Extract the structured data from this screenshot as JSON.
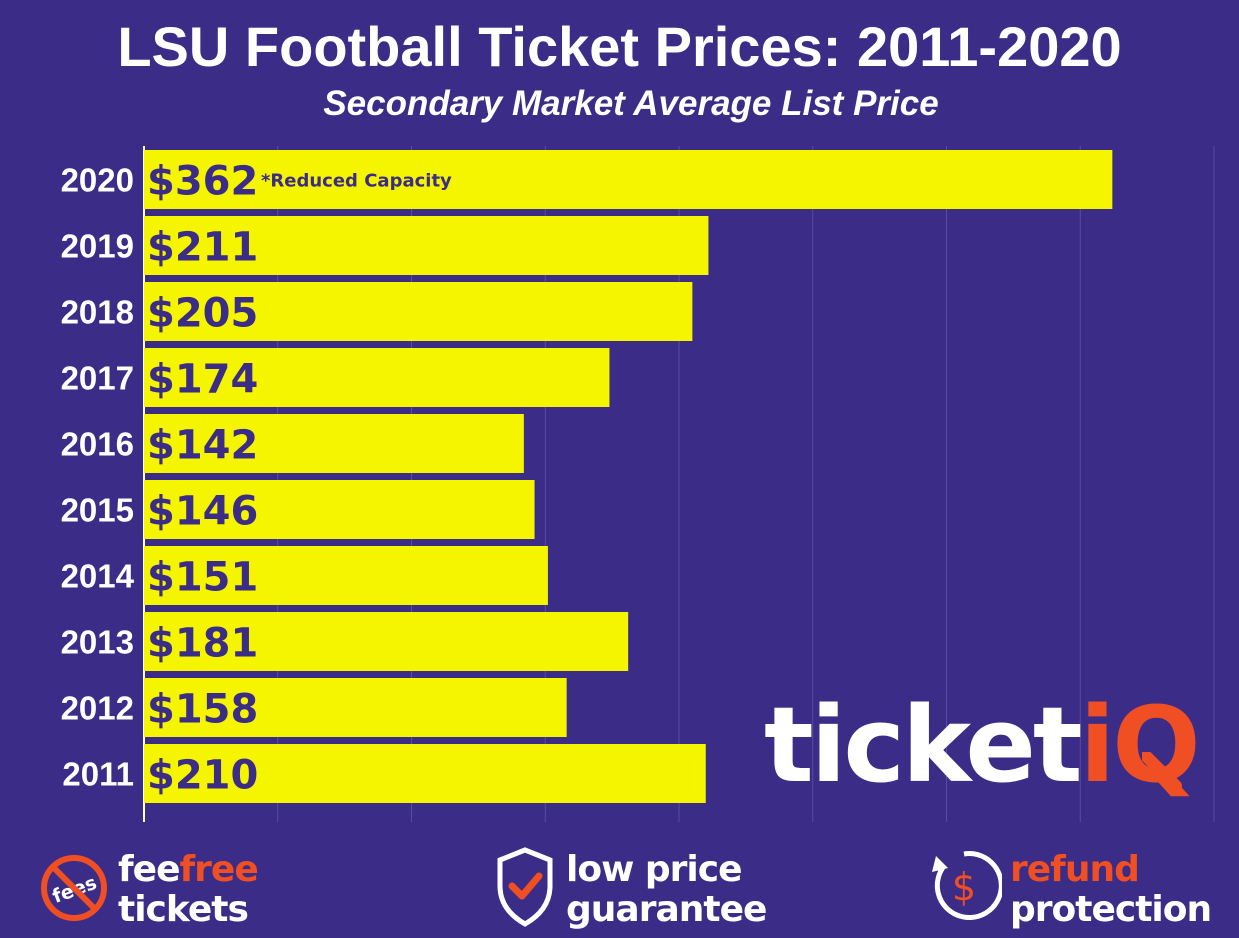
{
  "header": {
    "title": "LSU Football Ticket Prices: 2011-2020",
    "subtitle": "Secondary Market Average List Price"
  },
  "chart_data": {
    "type": "bar",
    "orientation": "horizontal",
    "categories": [
      "2020",
      "2019",
      "2018",
      "2017",
      "2016",
      "2015",
      "2014",
      "2013",
      "2012",
      "2011"
    ],
    "values": [
      362,
      211,
      205,
      174,
      142,
      146,
      151,
      181,
      158,
      210
    ],
    "value_labels": [
      "$362",
      "$211",
      "$205",
      "$174",
      "$142",
      "$146",
      "$151",
      "$181",
      "$158",
      "$210"
    ],
    "annotations": [
      {
        "category": "2020",
        "text": "*Reduced Capacity"
      }
    ],
    "title": "LSU Football Ticket Prices: 2011-2020",
    "subtitle": "Secondary Market Average List Price",
    "xlim": [
      0,
      400
    ],
    "grid": true,
    "legend": "none",
    "colors": {
      "bar": "#f5f500",
      "background": "#3b2c87",
      "label": "#3b2c87",
      "gridline": "#5a4ca3"
    }
  },
  "logo": {
    "main": "ticket",
    "accent": "iQ"
  },
  "badges": [
    {
      "icon": "no-fees-icon",
      "line1_white": "fee",
      "line1_accent": "free",
      "line2": "tickets"
    },
    {
      "icon": "shield-check-icon",
      "line1": "low price",
      "line2": "guarantee"
    },
    {
      "icon": "refund-dollar-icon",
      "line1_accent": "refund",
      "line2": "protection"
    }
  ],
  "icons": {
    "fees_icon_text": "fees"
  },
  "colors": {
    "accent": "#f04e23",
    "text": "#ffffff"
  }
}
